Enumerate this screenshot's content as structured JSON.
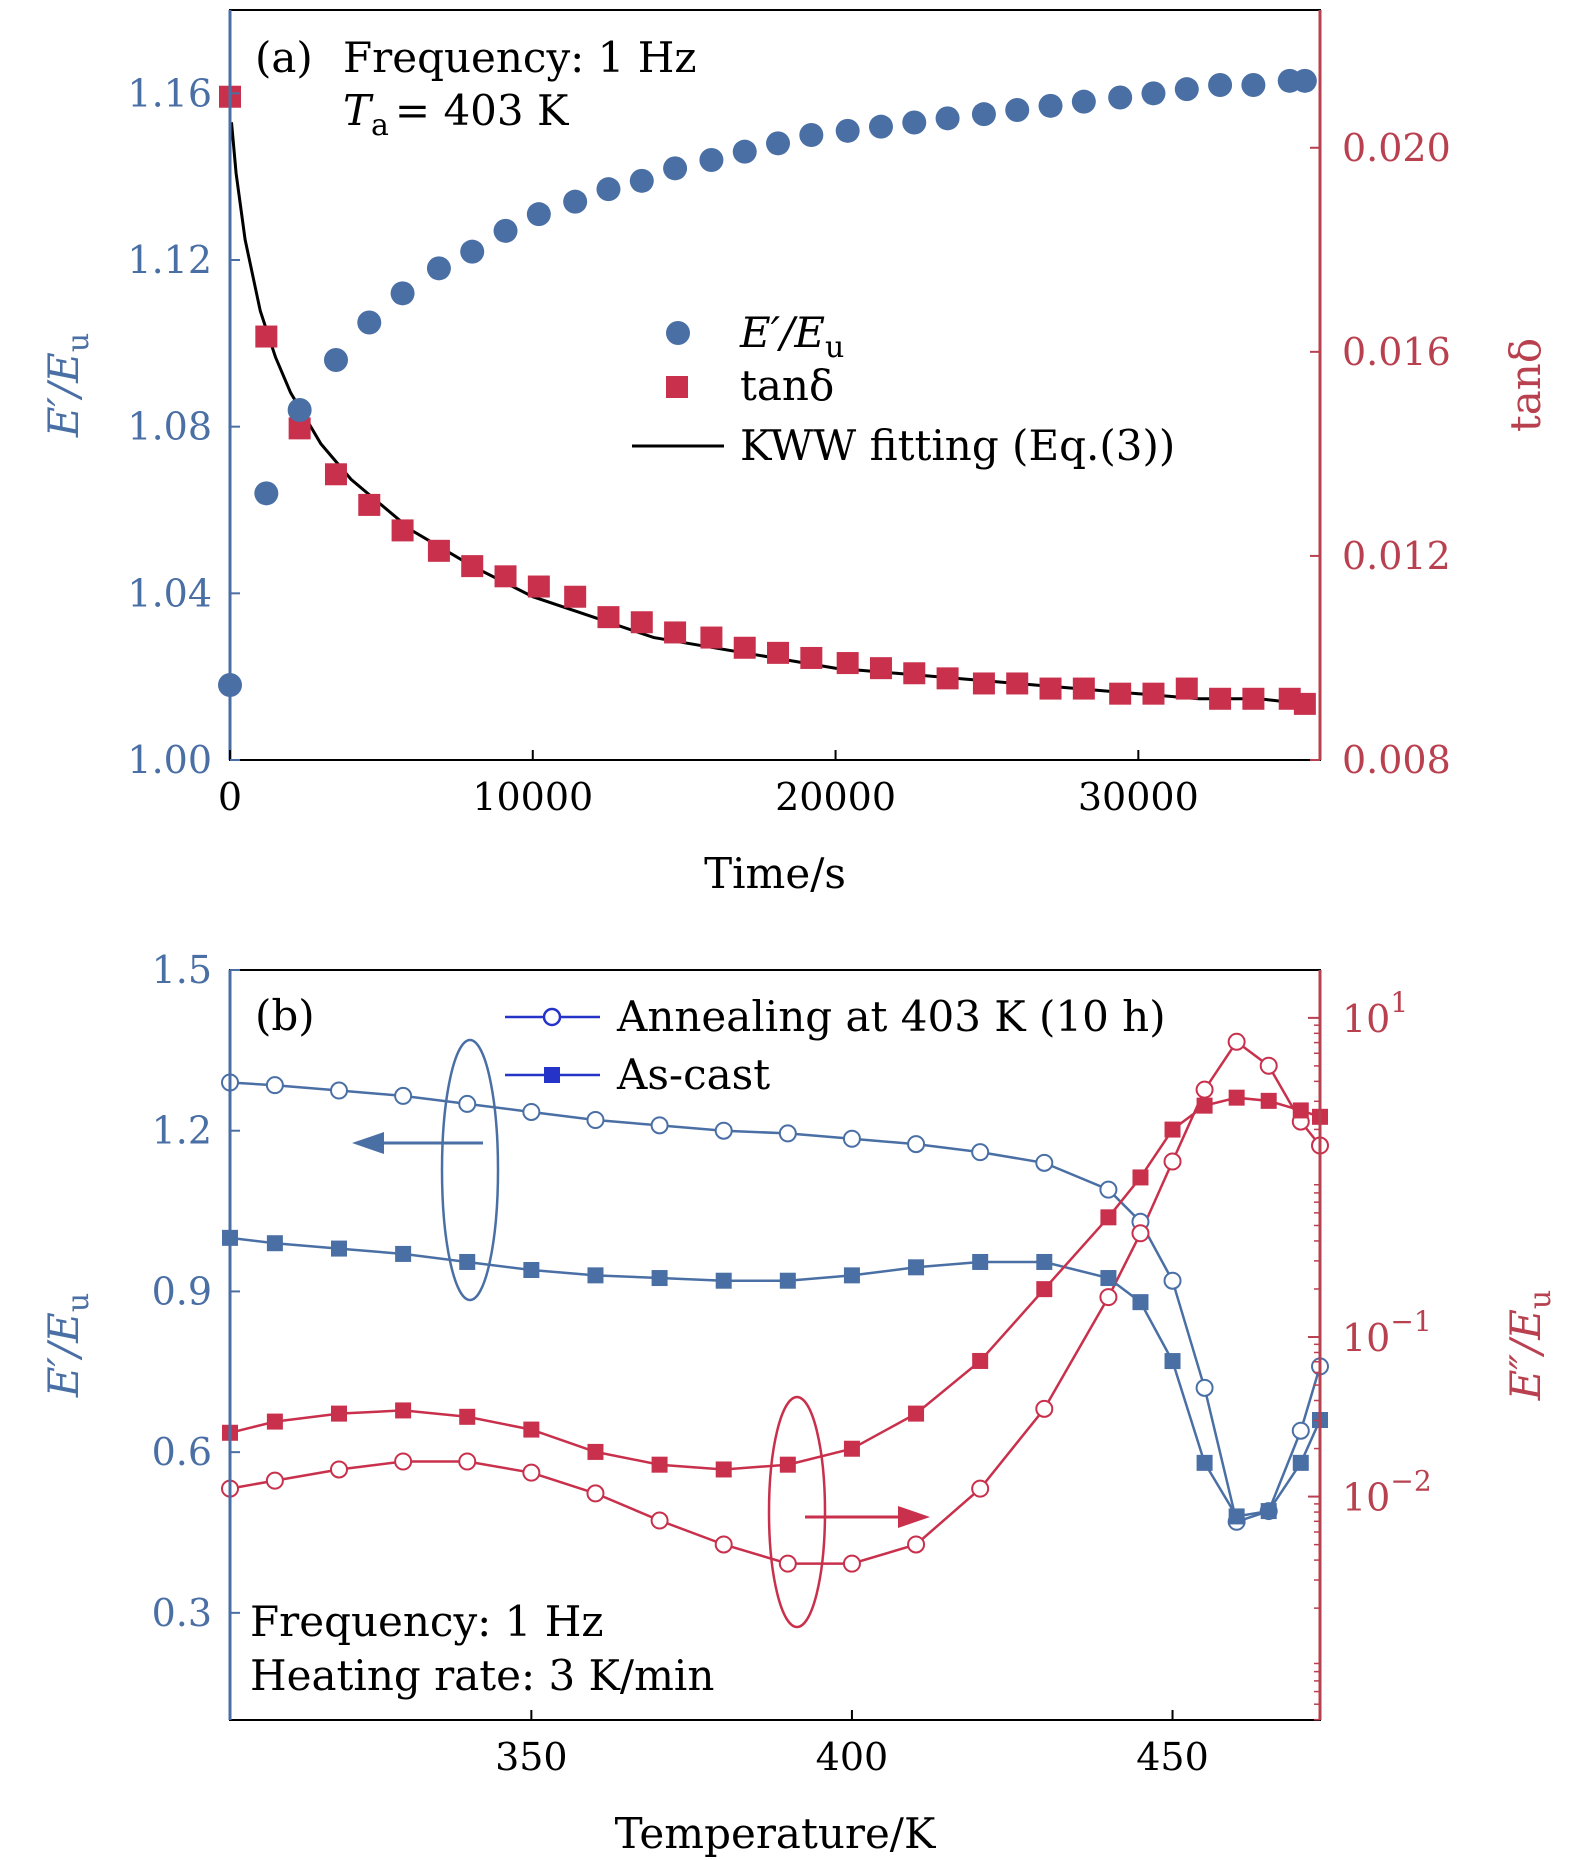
{
  "colors": {
    "blue": "#4a6fa5",
    "red": "#c8304c",
    "red_axis": "#b8404f",
    "line_blue": "#2633c8",
    "fit": "#000000"
  },
  "chart_data": [
    {
      "type": "scatter",
      "panel_label": "(a)",
      "annotations": [
        "Frequency: 1 Hz"
      ],
      "ta_label": {
        "sym": "T",
        "sub": "a",
        "rest": "=  403 K"
      },
      "xlabel": "Time/s",
      "ylabel_left": {
        "main": "E′/E",
        "sub": "u"
      },
      "ylabel_right": "tanδ",
      "xlim": [
        0,
        36000
      ],
      "ylim_left": [
        1.0,
        1.18
      ],
      "ylim_right": [
        0.008,
        0.0227
      ],
      "xticks": [
        0,
        10000,
        20000,
        30000
      ],
      "xtick_labels": [
        "0",
        "10000",
        "20000",
        "30000"
      ],
      "yticks_left": [
        1.0,
        1.04,
        1.08,
        1.12,
        1.16
      ],
      "ytick_labels_left": [
        "1.00",
        "1.04",
        "1.08",
        "1.12",
        "1.16"
      ],
      "yticks_right": [
        0.008,
        0.012,
        0.016,
        0.02
      ],
      "ytick_labels_right": [
        "0.008",
        "0.012",
        "0.016",
        "0.020"
      ],
      "legend": {
        "placement": "center",
        "entries": [
          {
            "main": "E′/E",
            "sub": "u"
          },
          {
            "main": "tanδ",
            "sub": ""
          },
          {
            "main": "KWW fitting (Eq.(3))",
            "sub": ""
          }
        ]
      },
      "series": [
        {
          "name": "E′/Eu",
          "axis": "left",
          "marker": "circle",
          "x": [
            0,
            1200,
            2300,
            3500,
            4600,
            5700,
            6900,
            8000,
            9100,
            10200,
            11400,
            12500,
            13600,
            14700,
            15900,
            17000,
            18100,
            19200,
            20400,
            21500,
            22600,
            23700,
            24900,
            26000,
            27100,
            28200,
            29400,
            30500,
            31600,
            32700,
            33800,
            35000,
            35500
          ],
          "y": [
            1.018,
            1.064,
            1.084,
            1.096,
            1.105,
            1.112,
            1.118,
            1.122,
            1.127,
            1.131,
            1.134,
            1.137,
            1.139,
            1.142,
            1.144,
            1.146,
            1.148,
            1.15,
            1.151,
            1.152,
            1.153,
            1.154,
            1.155,
            1.156,
            1.157,
            1.158,
            1.159,
            1.16,
            1.161,
            1.162,
            1.162,
            1.163,
            1.163
          ]
        },
        {
          "name": "tanδ",
          "axis": "right",
          "marker": "square",
          "x": [
            0,
            1200,
            2300,
            3500,
            4600,
            5700,
            6900,
            8000,
            9100,
            10200,
            11400,
            12500,
            13600,
            14700,
            15900,
            17000,
            18100,
            19200,
            20400,
            21500,
            22600,
            23700,
            24900,
            26000,
            27100,
            28200,
            29400,
            30500,
            31600,
            32700,
            33800,
            35000,
            35500
          ],
          "y": [
            0.021,
            0.0163,
            0.0145,
            0.0136,
            0.013,
            0.0125,
            0.0121,
            0.0118,
            0.0116,
            0.0114,
            0.0112,
            0.0108,
            0.0107,
            0.0105,
            0.0104,
            0.0102,
            0.0101,
            0.01,
            0.0099,
            0.0098,
            0.0097,
            0.0096,
            0.0095,
            0.0095,
            0.0094,
            0.0094,
            0.0093,
            0.0093,
            0.0094,
            0.0092,
            0.0092,
            0.0092,
            0.0091
          ]
        },
        {
          "name": "KWW fitting (Eq.(3))",
          "axis": "right",
          "type": "line",
          "x": [
            50,
            200,
            500,
            1000,
            1500,
            2000,
            3000,
            4000,
            5000,
            6000,
            8000,
            10000,
            12000,
            14000,
            16000,
            18000,
            20000,
            22000,
            24000,
            26000,
            28000,
            30000,
            32000,
            34000,
            35500
          ],
          "y": [
            0.0205,
            0.0195,
            0.0182,
            0.0168,
            0.0159,
            0.0152,
            0.0142,
            0.0135,
            0.013,
            0.0125,
            0.0118,
            0.0112,
            0.0108,
            0.0104,
            0.0102,
            0.01,
            0.0098,
            0.0097,
            0.0096,
            0.0095,
            0.0094,
            0.0093,
            0.0092,
            0.0092,
            0.0091
          ]
        }
      ]
    },
    {
      "type": "line",
      "panel_label": "(b)",
      "annotations": [
        "Frequency: 1 Hz",
        "Heating rate: 3 K/min"
      ],
      "xlabel": "Temperature/K",
      "ylabel_left": {
        "main": "E′/E",
        "sub": "u"
      },
      "ylabel_right": {
        "main": "E″/E",
        "sub": "u"
      },
      "xlim": [
        303,
        473
      ],
      "ylim_left": [
        0.1,
        1.5
      ],
      "ylim_right_log10": [
        -3.4,
        1.3
      ],
      "yscale_right": "log",
      "xticks": [
        350,
        400,
        450
      ],
      "xtick_labels": [
        "350",
        "400",
        "450"
      ],
      "yticks_left": [
        0.3,
        0.6,
        0.9,
        1.2,
        1.5
      ],
      "ytick_labels_left": [
        "0.3",
        "0.6",
        "0.9",
        "1.2",
        "1.5"
      ],
      "yticks_right_log10": [
        -2,
        -1,
        1
      ],
      "ytick_labels_right": [
        {
          "base": "10",
          "exp": "−2"
        },
        {
          "base": "10",
          "exp": "−1"
        },
        {
          "base": "10",
          "exp": "1"
        }
      ],
      "legend": {
        "placement": "top",
        "entries": [
          "Annealing at 403 K (10 h)",
          "As-cast"
        ]
      },
      "series": [
        {
          "name": "Annealing at 403 K (10 h)",
          "quantity": "E′/Eu",
          "axis": "left",
          "marker": "open-circle",
          "x": [
            303,
            310,
            320,
            330,
            340,
            350,
            360,
            370,
            380,
            390,
            400,
            410,
            420,
            430,
            440,
            445,
            450,
            455,
            460,
            465,
            470,
            473
          ],
          "y": [
            1.29,
            1.285,
            1.275,
            1.265,
            1.25,
            1.235,
            1.22,
            1.21,
            1.2,
            1.195,
            1.185,
            1.175,
            1.16,
            1.14,
            1.09,
            1.03,
            0.92,
            0.72,
            0.47,
            0.49,
            0.64,
            0.76
          ]
        },
        {
          "name": "As-cast",
          "quantity": "E′/Eu",
          "axis": "left",
          "marker": "filled-square",
          "x": [
            303,
            310,
            320,
            330,
            340,
            350,
            360,
            370,
            380,
            390,
            400,
            410,
            420,
            430,
            440,
            445,
            450,
            455,
            460,
            465,
            470,
            473
          ],
          "y": [
            1.0,
            0.99,
            0.98,
            0.97,
            0.955,
            0.94,
            0.93,
            0.925,
            0.92,
            0.92,
            0.93,
            0.945,
            0.955,
            0.955,
            0.925,
            0.88,
            0.77,
            0.58,
            0.48,
            0.49,
            0.58,
            0.66
          ]
        },
        {
          "name": "Annealing at 403 K (10 h)",
          "quantity": "E″/Eu",
          "axis": "right",
          "marker": "open-circle",
          "x": [
            303,
            310,
            320,
            330,
            340,
            350,
            360,
            370,
            380,
            390,
            400,
            410,
            420,
            430,
            440,
            445,
            450,
            455,
            460,
            465,
            470,
            473
          ],
          "y_log10": [
            -1.95,
            -1.9,
            -1.83,
            -1.78,
            -1.78,
            -1.85,
            -1.98,
            -2.15,
            -2.3,
            -2.42,
            -2.42,
            -2.3,
            -1.95,
            -1.45,
            -0.75,
            -0.35,
            0.1,
            0.55,
            0.85,
            0.7,
            0.35,
            0.2
          ]
        },
        {
          "name": "As-cast",
          "quantity": "E″/Eu",
          "axis": "right",
          "marker": "filled-square",
          "x": [
            303,
            310,
            320,
            330,
            340,
            350,
            360,
            370,
            380,
            390,
            400,
            410,
            420,
            430,
            440,
            445,
            450,
            455,
            460,
            465,
            470,
            473
          ],
          "y_log10": [
            -1.6,
            -1.53,
            -1.48,
            -1.46,
            -1.5,
            -1.58,
            -1.72,
            -1.8,
            -1.83,
            -1.8,
            -1.7,
            -1.48,
            -1.15,
            -0.7,
            -0.25,
            0.0,
            0.3,
            0.45,
            0.5,
            0.48,
            0.42,
            0.38
          ]
        }
      ]
    }
  ]
}
